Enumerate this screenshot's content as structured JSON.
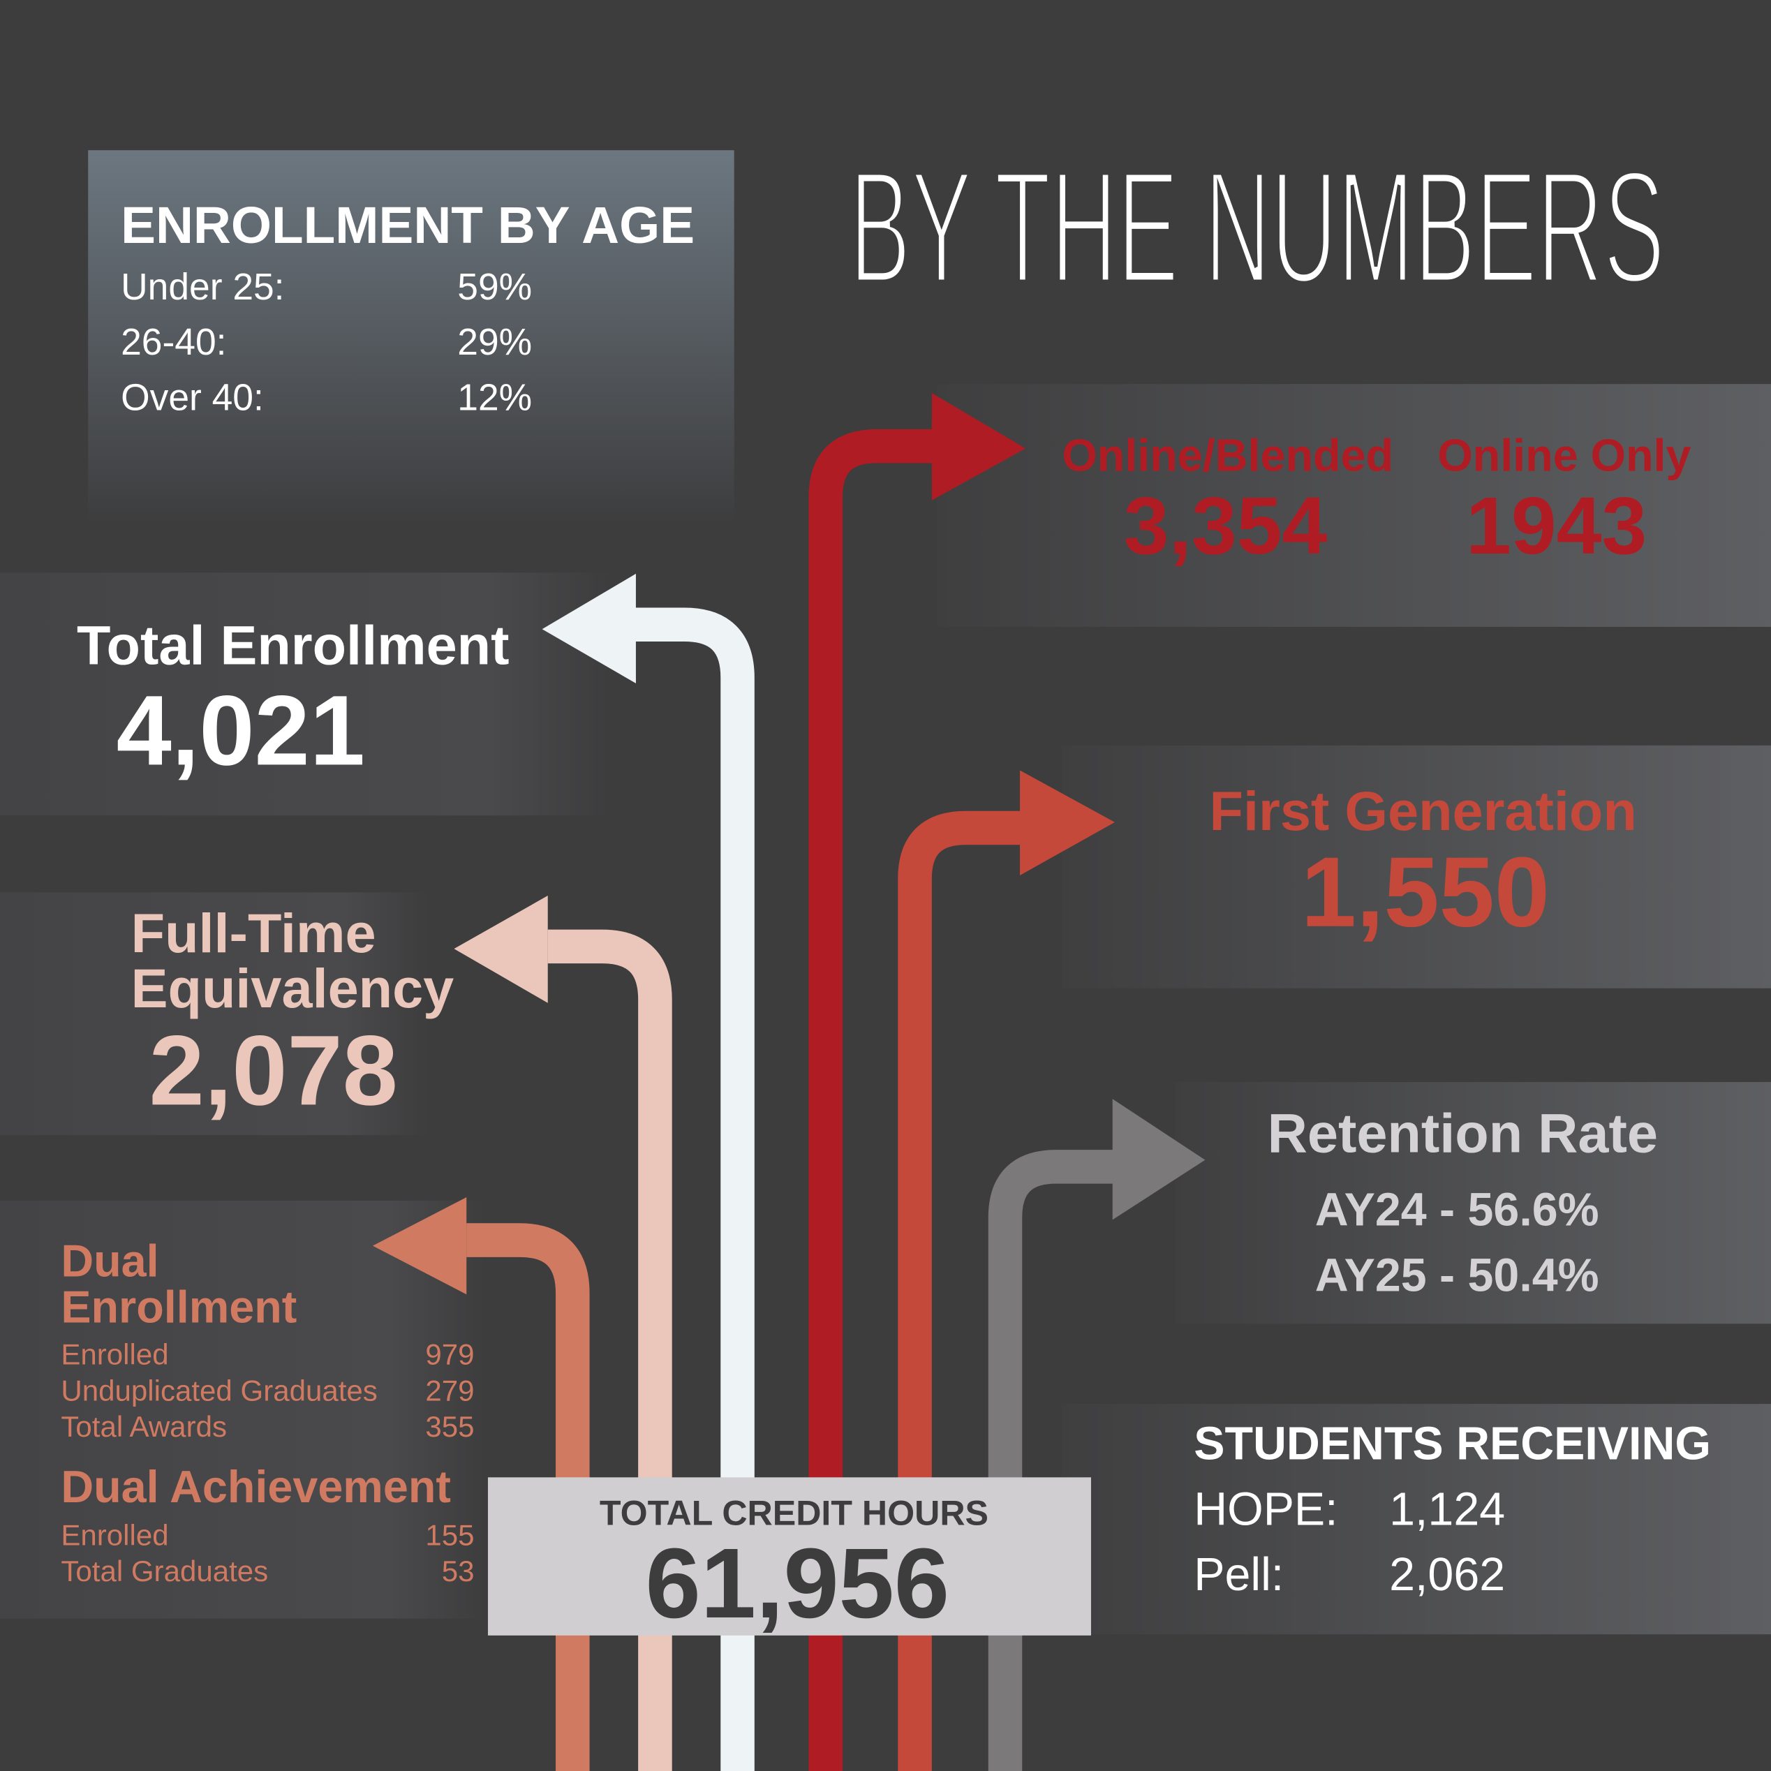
{
  "title": "BY THE NUMBERS",
  "enrollment_by_age": {
    "heading": "ENROLLMENT BY AGE",
    "rows": [
      [
        "Under 25:",
        "59%"
      ],
      [
        "26-40:",
        "29%"
      ],
      [
        "Over 40:",
        "12%"
      ]
    ]
  },
  "online": [
    {
      "label": "Online/Blended",
      "value": "3,354"
    },
    {
      "label": "Online Only",
      "value": "1943"
    }
  ],
  "total_enrollment": {
    "label": "Total Enrollment",
    "value": "4,021"
  },
  "first_generation": {
    "label": "First Generation",
    "value": "1,550"
  },
  "full_time_equivalency": {
    "label_lines": [
      "Full-Time",
      "Equivalency"
    ],
    "value": "2,078"
  },
  "retention_rate": {
    "label": "Retention Rate",
    "rows": [
      "AY24 - 56.6%",
      "AY25 - 50.4%"
    ]
  },
  "dual_enrollment": {
    "heading_lines": [
      "Dual",
      "Enrollment"
    ],
    "rows": [
      [
        "Enrolled",
        "979"
      ],
      [
        "Unduplicated Graduates",
        "279"
      ],
      [
        "Total Awards",
        "355"
      ]
    ]
  },
  "dual_achievement": {
    "heading": "Dual Achievement",
    "rows": [
      [
        "Enrolled",
        "155"
      ],
      [
        "Total Graduates",
        "53"
      ]
    ]
  },
  "total_credit_hours": {
    "label": "TOTAL CREDIT HOURS",
    "value": "61,956"
  },
  "students_receiving": {
    "heading": "STUDENTS RECEIVING",
    "rows": [
      [
        "HOPE:",
        "1,124"
      ],
      [
        "Pell:",
        "2,062"
      ]
    ]
  }
}
